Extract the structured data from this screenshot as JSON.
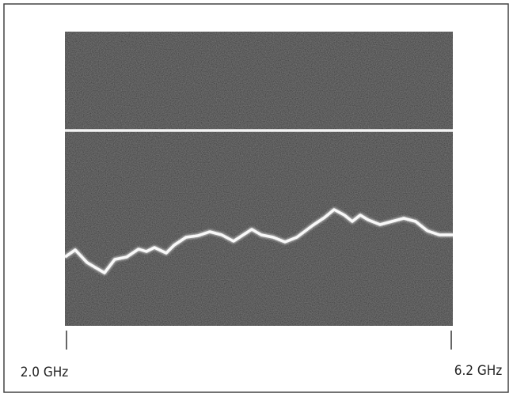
{
  "labels": {
    "start": "2.0 GHz",
    "end": "6.2 GHz"
  }
}
